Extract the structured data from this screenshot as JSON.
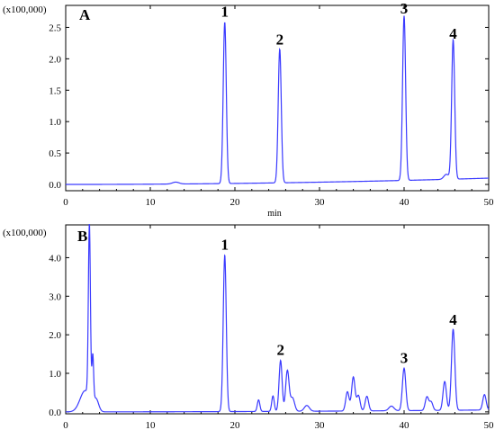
{
  "chart_data": [
    {
      "type": "line",
      "panel": "A",
      "y_unit_label": "(x100,000)",
      "xlabel": "min",
      "xlim": [
        0,
        50
      ],
      "ylim": [
        -0.1,
        2.85
      ],
      "x_ticks": [
        0,
        10,
        20,
        30,
        40,
        50
      ],
      "y_ticks": [
        0.0,
        0.5,
        1.0,
        1.5,
        2.0,
        2.5
      ],
      "y_tick_labels": [
        "0.0",
        "0.5",
        "1.0",
        "1.5",
        "2.0",
        "2.5"
      ],
      "color": "#3a3aff",
      "baseline": {
        "start": 0.0,
        "end": 0.1
      },
      "peaks": [
        {
          "label": "1",
          "x": 18.8,
          "y": 2.57,
          "width": 0.18
        },
        {
          "label": "2",
          "x": 25.3,
          "y": 2.13,
          "width": 0.18
        },
        {
          "label": "3",
          "x": 40.0,
          "y": 2.62,
          "width": 0.18
        },
        {
          "label": "4",
          "x": 45.8,
          "y": 2.22,
          "width": 0.18
        }
      ],
      "minor_peaks": [
        {
          "x": 13.0,
          "y": 0.03,
          "width": 0.4
        },
        {
          "x": 45.0,
          "y": 0.08,
          "width": 0.3
        }
      ]
    },
    {
      "type": "line",
      "panel": "B",
      "y_unit_label": "(x100,000)",
      "xlabel": "",
      "xlim": [
        0,
        50
      ],
      "ylim": [
        -0.05,
        4.85
      ],
      "x_ticks": [
        0,
        10,
        20,
        30,
        40,
        50
      ],
      "y_ticks": [
        0.0,
        1.0,
        2.0,
        3.0,
        4.0
      ],
      "y_tick_labels": [
        "0.0",
        "1.0",
        "2.0",
        "3.0",
        "4.0"
      ],
      "color": "#3a3aff",
      "baseline": {
        "start": 0.0,
        "end": 0.05
      },
      "peaks": [
        {
          "label": "1",
          "x": 18.8,
          "y": 4.05,
          "width": 0.18
        },
        {
          "label": "2",
          "x": 25.4,
          "y": 1.32,
          "width": 0.18
        },
        {
          "label": "3",
          "x": 40.0,
          "y": 1.1,
          "width": 0.2
        },
        {
          "label": "4",
          "x": 45.8,
          "y": 2.1,
          "width": 0.2
        }
      ],
      "minor_peaks": [
        {
          "x": 2.3,
          "y": 0.55,
          "width": 0.6
        },
        {
          "x": 2.8,
          "y": 4.5,
          "width": 0.12
        },
        {
          "x": 3.2,
          "y": 1.2,
          "width": 0.1
        },
        {
          "x": 3.6,
          "y": 0.3,
          "width": 0.3
        },
        {
          "x": 22.8,
          "y": 0.3,
          "width": 0.15
        },
        {
          "x": 24.5,
          "y": 0.4,
          "width": 0.15
        },
        {
          "x": 26.2,
          "y": 1.05,
          "width": 0.2
        },
        {
          "x": 26.8,
          "y": 0.35,
          "width": 0.25
        },
        {
          "x": 28.5,
          "y": 0.15,
          "width": 0.3
        },
        {
          "x": 33.3,
          "y": 0.5,
          "width": 0.2
        },
        {
          "x": 34.0,
          "y": 0.88,
          "width": 0.2
        },
        {
          "x": 34.6,
          "y": 0.4,
          "width": 0.2
        },
        {
          "x": 35.6,
          "y": 0.38,
          "width": 0.2
        },
        {
          "x": 38.5,
          "y": 0.12,
          "width": 0.3
        },
        {
          "x": 42.7,
          "y": 0.35,
          "width": 0.2
        },
        {
          "x": 43.2,
          "y": 0.22,
          "width": 0.2
        },
        {
          "x": 44.8,
          "y": 0.75,
          "width": 0.2
        },
        {
          "x": 49.5,
          "y": 0.4,
          "width": 0.2
        }
      ]
    }
  ]
}
